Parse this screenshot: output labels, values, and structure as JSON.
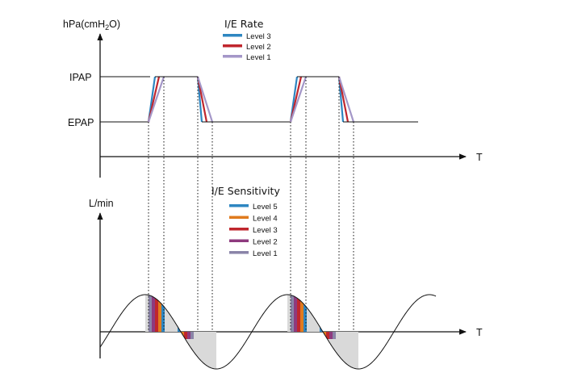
{
  "pressure_panel": {
    "y_unit_prefix": "hPa(cmH",
    "y_unit_sub": "2",
    "y_unit_suffix": "O)",
    "ipap_label": "IPAP",
    "epap_label": "EPAP",
    "x_label": "T",
    "legend_title": "I/E Rate",
    "legend": [
      {
        "label": "Level 3",
        "color": "#2e86c1"
      },
      {
        "label": "Level 2",
        "color": "#c0262d"
      },
      {
        "label": "Level 1",
        "color": "#a497c8"
      }
    ]
  },
  "flow_panel": {
    "y_label": "L/min",
    "x_label": "T",
    "legend_title": "I/E Sensitivity",
    "legend": [
      {
        "label": "Level 5",
        "color": "#2e86c1"
      },
      {
        "label": "Level 4",
        "color": "#e07b1e"
      },
      {
        "label": "Level 3",
        "color": "#c0262d"
      },
      {
        "label": "Level 2",
        "color": "#8e3a7e"
      },
      {
        "label": "Level 1",
        "color": "#8a84a8"
      }
    ]
  }
}
